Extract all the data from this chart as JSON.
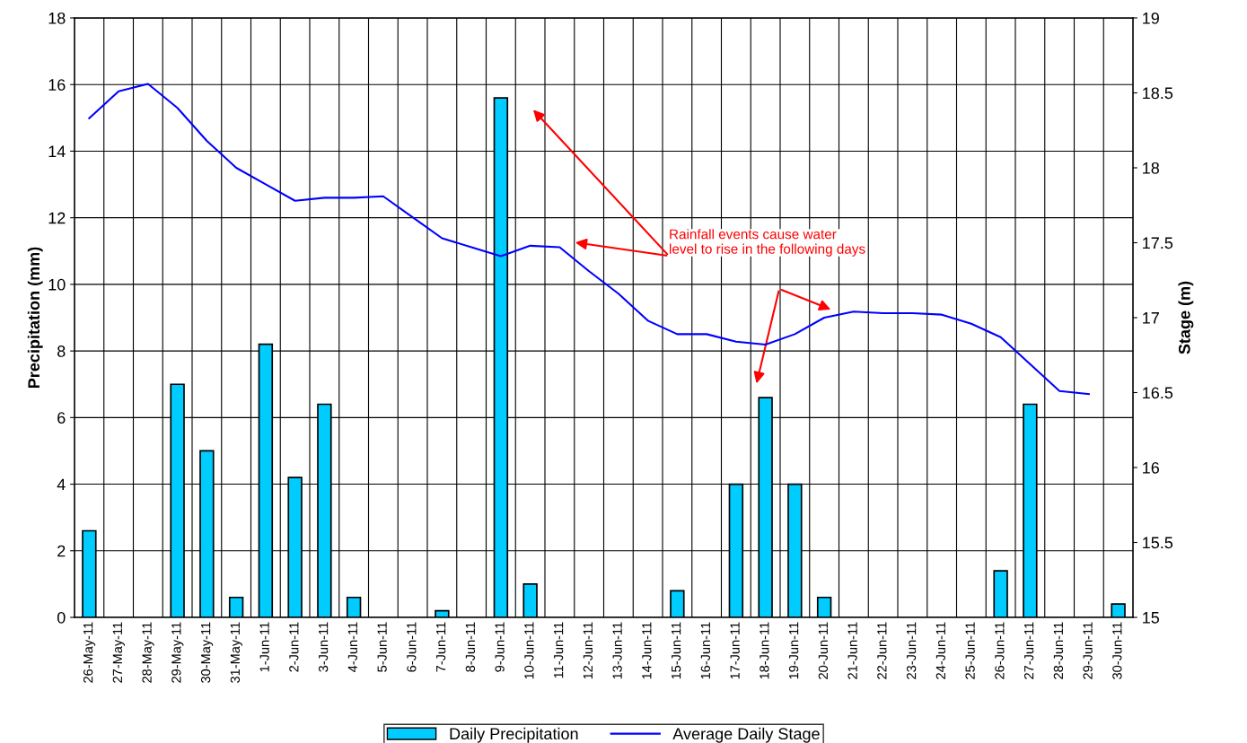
{
  "chart_data": {
    "type": "bar",
    "ylabel": "Precipitation (mm)",
    "y2label": "Stage (m)",
    "categories": [
      "26-May-11",
      "27-May-11",
      "28-May-11",
      "29-May-11",
      "30-May-11",
      "31-May-11",
      "1-Jun-11",
      "2-Jun-11",
      "3-Jun-11",
      "4-Jun-11",
      "5-Jun-11",
      "6-Jun-11",
      "7-Jun-11",
      "8-Jun-11",
      "9-Jun-11",
      "10-Jun-11",
      "11-Jun-11",
      "12-Jun-11",
      "13-Jun-11",
      "14-Jun-11",
      "15-Jun-11",
      "16-Jun-11",
      "17-Jun-11",
      "18-Jun-11",
      "19-Jun-11",
      "20-Jun-11",
      "21-Jun-11",
      "22-Jun-11",
      "23-Jun-11",
      "24-Jun-11",
      "25-Jun-11",
      "26-Jun-11",
      "27-Jun-11",
      "28-Jun-11",
      "29-Jun-11",
      "30-Jun-11"
    ],
    "series": [
      {
        "name": "Daily Precipitation",
        "color": "#00ccff",
        "values": [
          2.6,
          0,
          0,
          7,
          5,
          0.6,
          8.2,
          4.2,
          6.4,
          0.6,
          0,
          0,
          0.2,
          0,
          15.6,
          1,
          0,
          0,
          0,
          0,
          0.8,
          0,
          4,
          6.6,
          4,
          0.6,
          0,
          0,
          0,
          0,
          0,
          1.4,
          6.4,
          0,
          0,
          0.4
        ]
      },
      {
        "name": "Average Daily Stage",
        "type": "line",
        "axis": "y2",
        "color": "#0000ff",
        "values": [
          18.33,
          18.51,
          18.56,
          18.4,
          18.18,
          18.0,
          17.89,
          17.78,
          17.8,
          17.8,
          17.81,
          17.67,
          17.53,
          17.47,
          17.41,
          17.48,
          17.47,
          17.31,
          17.16,
          16.98,
          16.89,
          16.89,
          16.84,
          16.82,
          16.89,
          17.0,
          17.04,
          17.03,
          17.03,
          17.02,
          16.96,
          16.87,
          16.69,
          16.51,
          16.49,
          null
        ]
      }
    ],
    "ylim": [
      0,
      18
    ],
    "yticks": [
      0,
      2,
      4,
      6,
      8,
      10,
      12,
      14,
      16,
      18
    ],
    "y2lim": [
      15,
      19
    ],
    "y2ticks": [
      15,
      15.5,
      16,
      16.5,
      17,
      17.5,
      18,
      18.5,
      19
    ],
    "grid": true,
    "legend": "bottom",
    "marker": "none",
    "line_style": "solid",
    "annotations": [
      "Rainfall events cause water\nlevel to rise in the following days"
    ]
  }
}
